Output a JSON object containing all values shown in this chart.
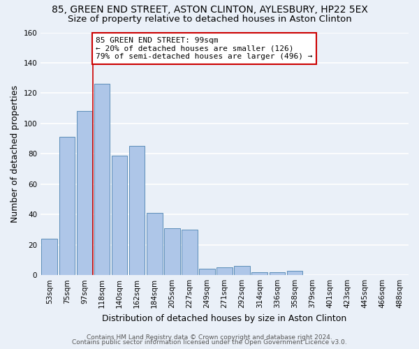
{
  "title": "85, GREEN END STREET, ASTON CLINTON, AYLESBURY, HP22 5EX",
  "subtitle": "Size of property relative to detached houses in Aston Clinton",
  "xlabel": "Distribution of detached houses by size in Aston Clinton",
  "ylabel": "Number of detached properties",
  "bar_labels": [
    "53sqm",
    "75sqm",
    "97sqm",
    "118sqm",
    "140sqm",
    "162sqm",
    "184sqm",
    "205sqm",
    "227sqm",
    "249sqm",
    "271sqm",
    "292sqm",
    "314sqm",
    "336sqm",
    "358sqm",
    "379sqm",
    "401sqm",
    "423sqm",
    "445sqm",
    "466sqm",
    "488sqm"
  ],
  "bar_values": [
    24,
    91,
    108,
    126,
    79,
    85,
    41,
    31,
    30,
    4,
    5,
    6,
    2,
    2,
    3,
    0,
    0,
    0,
    0,
    0,
    0
  ],
  "bar_color": "#aec6e8",
  "bar_edge_color": "#5b8db8",
  "background_color": "#eaf0f8",
  "grid_color": "#ffffff",
  "ylim": [
    0,
    160
  ],
  "yticks": [
    0,
    20,
    40,
    60,
    80,
    100,
    120,
    140,
    160
  ],
  "vline_x_index": 2,
  "vline_color": "#cc0000",
  "annotation_text": "85 GREEN END STREET: 99sqm\n← 20% of detached houses are smaller (126)\n79% of semi-detached houses are larger (496) →",
  "annotation_box_color": "#ffffff",
  "annotation_box_edgecolor": "#cc0000",
  "footer_line1": "Contains HM Land Registry data © Crown copyright and database right 2024.",
  "footer_line2": "Contains public sector information licensed under the Open Government Licence v3.0.",
  "title_fontsize": 10,
  "subtitle_fontsize": 9.5,
  "label_fontsize": 9,
  "tick_fontsize": 7.5,
  "annotation_fontsize": 8,
  "footer_fontsize": 6.5
}
